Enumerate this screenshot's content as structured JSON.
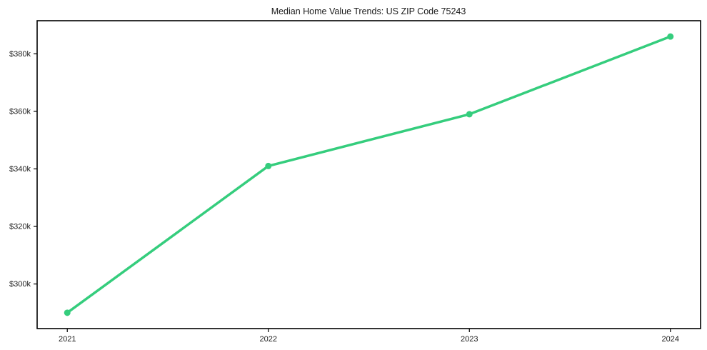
{
  "title": "Median Home Value Trends: US ZIP Code 75243",
  "colors": {
    "line": "#35cd7d",
    "marker": "#35cd7d",
    "frame": "#000000",
    "tick": "#000000",
    "text": "#1a1a1a",
    "background": "#ffffff"
  },
  "chart_data": {
    "type": "line",
    "title": "Median Home Value Trends: US ZIP Code 75243",
    "xlabel": "",
    "ylabel": "",
    "x": [
      2021,
      2022,
      2023,
      2024
    ],
    "x_tick_labels": [
      "2021",
      "2022",
      "2023",
      "2024"
    ],
    "series": [
      {
        "name": "Median Home Value",
        "values": [
          290000,
          341000,
          359000,
          386000
        ]
      }
    ],
    "y_tick_values": [
      300000,
      320000,
      340000,
      360000,
      380000
    ],
    "y_tick_labels": [
      "$300k",
      "$320k",
      "$340k",
      "$360k",
      "$380k"
    ],
    "xlim": [
      2020.85,
      2024.15
    ],
    "ylim": [
      284500,
      391500
    ],
    "grid": false,
    "legend": false,
    "marker": "circle"
  }
}
